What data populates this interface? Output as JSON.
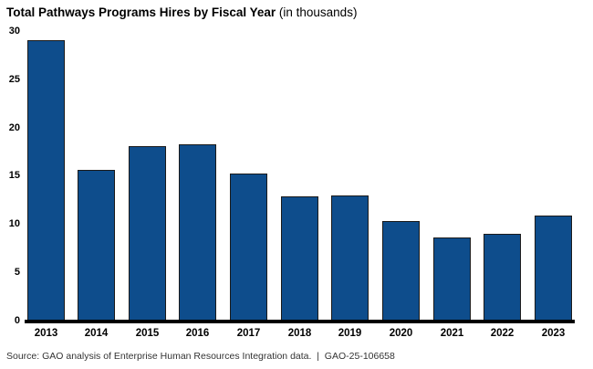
{
  "title": {
    "main": "Total Pathways Programs Hires by Fiscal Year",
    "suffix": " (in thousands)"
  },
  "source_line": "Source: GAO analysis of Enterprise Human Resources Integration data.  |  GAO-25-106658",
  "colors": {
    "bar_fill": "#0E4D8C",
    "bar_outline": "#1A1A1A",
    "baseline": "#000000",
    "text": "#000000",
    "source_text": "#333333"
  },
  "chart_data": {
    "type": "bar",
    "title": "Total Pathways Programs Hires by Fiscal Year",
    "subtitle": "(in thousands)",
    "categories": [
      "2013",
      "2014",
      "2015",
      "2016",
      "2017",
      "2018",
      "2019",
      "2020",
      "2021",
      "2022",
      "2023"
    ],
    "values": [
      29.1,
      15.6,
      18.1,
      18.3,
      15.3,
      12.9,
      13.0,
      10.3,
      8.6,
      9.0,
      10.9
    ],
    "xlabel": "",
    "ylabel": "",
    "ylim": [
      0,
      30
    ],
    "yticks": [
      0,
      5,
      10,
      15,
      20,
      25,
      30
    ],
    "grid": false,
    "legend": "none",
    "bar_color": "#0E4D8C"
  }
}
